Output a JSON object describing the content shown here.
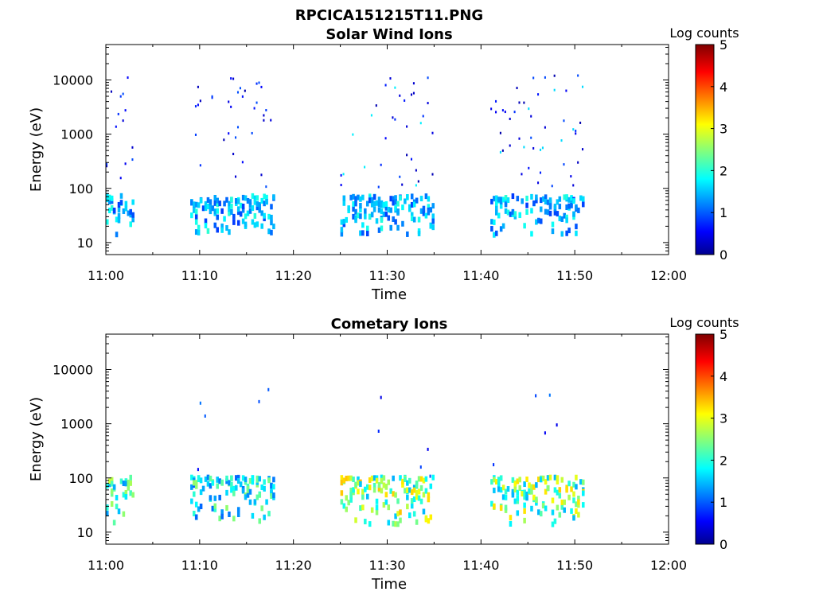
{
  "figure_title": "RPCICA151215T11.PNG",
  "chart_data": [
    {
      "type": "heatmap",
      "title": "Solar Wind Ions",
      "xlabel": "Time",
      "ylabel": "Energy (eV)",
      "x_ticks": [
        "11:00",
        "11:10",
        "11:20",
        "11:30",
        "11:40",
        "11:50",
        "12:00"
      ],
      "xlim": [
        "11:00",
        "12:00"
      ],
      "y_ticks": [
        "10",
        "100",
        "1000",
        "10000"
      ],
      "ylim": [
        6,
        45000
      ],
      "yscale": "log",
      "colorbar": {
        "label": "Log counts",
        "ticks": [
          "0",
          "1",
          "2",
          "3",
          "4",
          "5"
        ],
        "range": [
          0,
          5
        ],
        "colormap": "jet"
      },
      "bursts": [
        {
          "start": "11:00",
          "end": "11:03",
          "low_energy_peak_log_counts": 2.0,
          "high_energy_peak_log_counts": 1.0
        },
        {
          "start": "11:09",
          "end": "11:18",
          "low_energy_peak_log_counts": 2.0,
          "high_energy_peak_log_counts": 1.0
        },
        {
          "start": "11:25",
          "end": "11:35",
          "low_energy_peak_log_counts": 2.0,
          "high_energy_peak_log_counts": 1.8
        },
        {
          "start": "11:41",
          "end": "11:51",
          "low_energy_peak_log_counts": 2.0,
          "high_energy_peak_log_counts": 1.7
        }
      ]
    },
    {
      "type": "heatmap",
      "title": "Cometary Ions",
      "xlabel": "Time",
      "ylabel": "Energy (eV)",
      "x_ticks": [
        "11:00",
        "11:10",
        "11:20",
        "11:30",
        "11:40",
        "11:50",
        "12:00"
      ],
      "xlim": [
        "11:00",
        "12:00"
      ],
      "y_ticks": [
        "10",
        "100",
        "1000",
        "10000"
      ],
      "ylim": [
        6,
        45000
      ],
      "yscale": "log",
      "colorbar": {
        "label": "Log counts",
        "ticks": [
          "0",
          "1",
          "2",
          "3",
          "4",
          "5"
        ],
        "range": [
          0,
          5
        ],
        "colormap": "jet"
      },
      "bursts": [
        {
          "start": "11:00",
          "end": "11:03",
          "low_energy_peak_log_counts": 2.8
        },
        {
          "start": "11:09",
          "end": "11:18",
          "low_energy_peak_log_counts": 2.5
        },
        {
          "start": "11:25",
          "end": "11:35",
          "low_energy_peak_log_counts": 3.3
        },
        {
          "start": "11:41",
          "end": "11:51",
          "low_energy_peak_log_counts": 3.2
        }
      ]
    }
  ]
}
